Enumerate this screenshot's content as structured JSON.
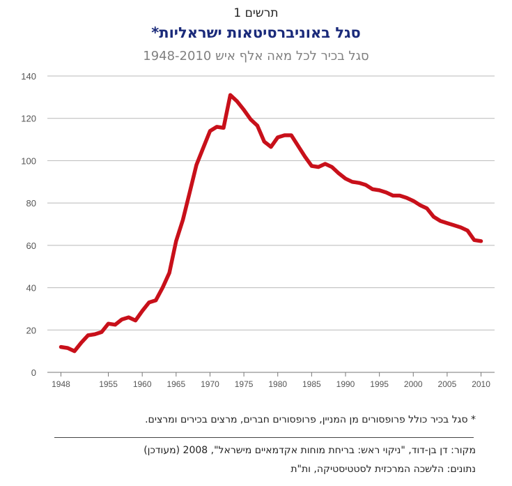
{
  "header": {
    "pretitle": "תרשים 1",
    "title": "*סגל באוניברסיטאות ישראליות",
    "subtitle": "סגל בכיר לכל מאה אלף איש 1948-2010"
  },
  "chart_data": {
    "type": "line",
    "title": "*סגל באוניברסיטאות ישראליות",
    "subtitle": "סגל בכיר לכל מאה אלף איש 1948-2010",
    "xlim": [
      1946,
      2012
    ],
    "ylim": [
      0,
      140
    ],
    "xticks": [
      1948,
      1955,
      1960,
      1965,
      1970,
      1975,
      1980,
      1985,
      1990,
      1995,
      2000,
      2005,
      2010
    ],
    "yticks": [
      0,
      20,
      40,
      60,
      80,
      100,
      120,
      140
    ],
    "grid": true,
    "legend": "none",
    "series": [
      {
        "color": "#c8101a",
        "x": [
          1948,
          1949,
          1950,
          1951,
          1952,
          1953,
          1954,
          1955,
          1956,
          1957,
          1958,
          1959,
          1960,
          1961,
          1962,
          1963,
          1964,
          1965,
          1966,
          1967,
          1968,
          1969,
          1970,
          1971,
          1972,
          1973,
          1974,
          1975,
          1976,
          1977,
          1978,
          1979,
          1980,
          1981,
          1982,
          1983,
          1984,
          1985,
          1986,
          1987,
          1988,
          1989,
          1990,
          1991,
          1992,
          1993,
          1994,
          1995,
          1996,
          1997,
          1998,
          1999,
          2000,
          2001,
          2002,
          2003,
          2004,
          2005,
          2006,
          2007,
          2008,
          2009,
          2010
        ],
        "y": [
          12,
          11.5,
          10,
          14,
          17.5,
          18,
          19,
          23,
          22.5,
          25,
          26,
          24.5,
          29,
          33,
          34,
          40,
          47,
          62,
          72,
          85,
          98,
          106,
          114,
          116,
          115.5,
          131,
          128,
          124,
          119.5,
          116.5,
          109,
          106.5,
          111,
          112,
          112,
          107,
          102,
          97.5,
          97,
          98.5,
          97,
          94,
          91.5,
          90,
          89.5,
          88.5,
          86.5,
          86,
          85,
          83.5,
          83.5,
          82.5,
          81,
          79,
          77.5,
          73.5,
          71.5,
          70.5,
          69.5,
          68.5,
          67,
          62.5,
          62
        ]
      }
    ]
  },
  "footnote": "* סגל בכיר כולל פרופסורים מן המניין, פרופסורים חברים, מרצים בכירים ומרצים.",
  "source": {
    "line1": "מקור: דן בן-דוד, \"ניקוי ראש: בריחת מוחות אקדמאיים מישראל\", 2008 (מעודכן)",
    "line2": "נתונים: הלשכה המרכזית לסטטיסטיקה, ות\"ת"
  }
}
